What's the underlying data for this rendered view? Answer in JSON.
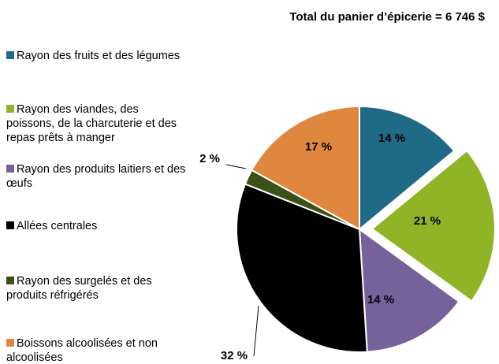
{
  "chart_data": {
    "type": "pie",
    "title": "Total du panier d’épicerie = 6 746 $",
    "categories": [
      "Rayon des fruits et des légumes",
      "Rayon des viandes, des poissons, de la charcuterie et des repas prêts à manger",
      "Rayon des produits laitiers et des œufs",
      "Allées centrales",
      "Rayon des surgelés et des produits réfrigérés",
      "Boissons alcoolisées et non alcoolisées"
    ],
    "values": [
      14,
      21,
      14,
      32,
      2,
      17
    ],
    "value_labels": [
      "14 %",
      "21 %",
      "14 %",
      "32 %",
      "2 %",
      "17 %"
    ],
    "colors": [
      "#1f6b87",
      "#8fb526",
      "#77619b",
      "#000000",
      "#3a5218",
      "#e0873f"
    ],
    "exploded": [
      false,
      true,
      false,
      false,
      false,
      false
    ],
    "legend": "left"
  }
}
